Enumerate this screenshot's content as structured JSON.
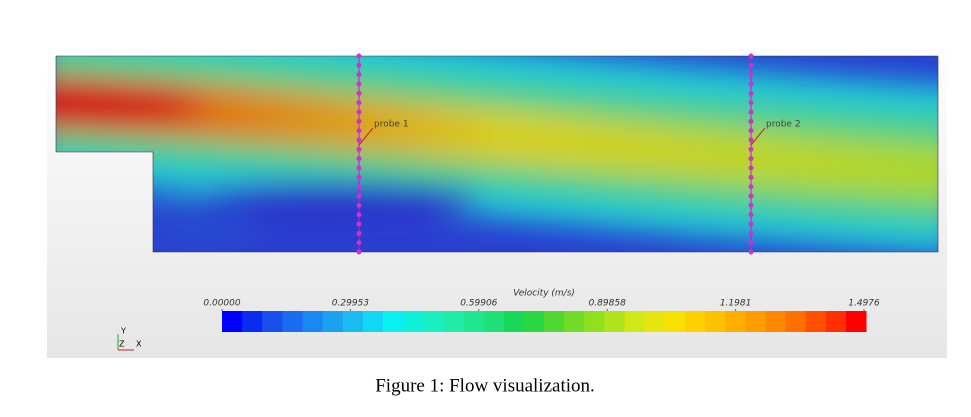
{
  "figure": {
    "probes": [
      {
        "label": "probe 1"
      },
      {
        "label": "probe 2"
      }
    ],
    "colorbar": {
      "title": "Velocity (m/s)",
      "ticks": [
        {
          "value": 0,
          "label": "0.00000"
        },
        0.29953,
        0.59906,
        0.89858,
        1.1981,
        1.4976
      ]
    },
    "axes": {
      "y": "Y",
      "z": "Z",
      "x": "X"
    },
    "caption": "Figure 1: Flow visualization."
  }
}
